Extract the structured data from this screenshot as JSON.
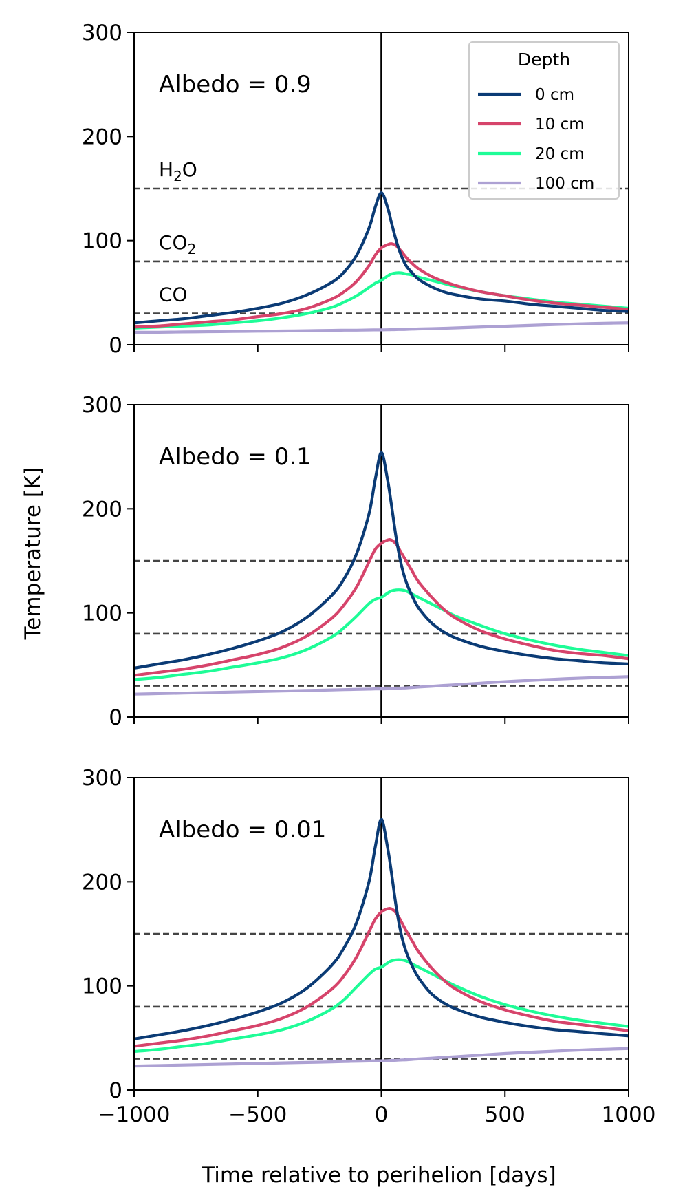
{
  "chart_data": {
    "type": "line",
    "title": "",
    "xlabel": "Time relative to perihelion [days]",
    "ylabel": "Temperature [K]",
    "xlim": [
      -1000,
      1000
    ],
    "ylim": [
      0,
      300
    ],
    "x_ticks": [
      -1000,
      -500,
      0,
      500,
      1000
    ],
    "x_tick_labels": [
      "−1000",
      "−500",
      "0",
      "500",
      "1000"
    ],
    "y_ticks": [
      0,
      100,
      200,
      300
    ],
    "y_tick_labels": [
      "0",
      "100",
      "200",
      "300"
    ],
    "perihelion_line_x": 0,
    "sublimation_lines": [
      {
        "species": "H2O",
        "label_main": "H",
        "label_sub": "2",
        "label_end": "O",
        "temperature": 150
      },
      {
        "species": "CO2",
        "label_main": "CO",
        "label_sub": "2",
        "label_end": "",
        "temperature": 80
      },
      {
        "species": "CO",
        "label_main": "CO",
        "label_sub": "",
        "label_end": "",
        "temperature": 30
      }
    ],
    "legend": {
      "title": "Depth",
      "placement": "top-right",
      "entries": [
        "0 cm",
        "10 cm",
        "20 cm",
        "100 cm"
      ]
    },
    "x": [
      -1000,
      -900,
      -800,
      -700,
      -600,
      -500,
      -400,
      -300,
      -200,
      -150,
      -100,
      -50,
      -25,
      0,
      25,
      40,
      60,
      80,
      100,
      125,
      150,
      200,
      250,
      300,
      400,
      500,
      600,
      700,
      800,
      900,
      1000
    ],
    "panels": [
      {
        "label": "Albedo = 0.9",
        "albedo": 0.9,
        "series": [
          {
            "name": "0 cm",
            "color": "#0b3b75",
            "values": [
              21,
              23,
              25,
              28,
              31,
              35,
              40,
              48,
              60,
              70,
              86,
              112,
              132,
              146,
              132,
              118,
              100,
              86,
              76,
              69,
              63,
              56,
              51,
              48,
              44,
              42,
              39,
              37,
              35,
              33,
              32
            ]
          },
          {
            "name": "10 cm",
            "color": "#d6446b",
            "values": [
              17,
              18,
              20,
              22,
              24,
              27,
              30,
              35,
              44,
              51,
              61,
              76,
              86,
              93,
              96,
              97,
              95,
              90,
              84,
              78,
              73,
              66,
              61,
              57,
              51,
              47,
              43,
              40,
              38,
              36,
              34
            ]
          },
          {
            "name": "20 cm",
            "color": "#1efc97",
            "values": [
              16,
              17,
              18,
              19,
              21,
              23,
              26,
              30,
              36,
              41,
              47,
              55,
              59,
              62,
              66,
              68,
              69,
              69,
              68,
              67,
              65,
              62,
              59,
              56,
              51,
              47,
              44,
              41,
              39,
              37,
              35
            ]
          },
          {
            "name": "100 cm",
            "color": "#ada1d3",
            "values": [
              12,
              12,
              12.3,
              12.5,
              12.8,
              13,
              13.2,
              13.5,
              13.8,
              14,
              14,
              14.2,
              14.3,
              14.3,
              14.4,
              14.5,
              14.6,
              14.7,
              14.8,
              15,
              15.2,
              15.5,
              15.8,
              16.2,
              17,
              17.8,
              18.6,
              19.4,
              20,
              20.6,
              21
            ]
          }
        ]
      },
      {
        "label": "Albedo = 0.1",
        "albedo": 0.1,
        "series": [
          {
            "name": "0 cm",
            "color": "#0b3b75",
            "values": [
              47,
              51,
              55,
              60,
              66,
              73,
              82,
              96,
              117,
              133,
              157,
              195,
              228,
              254,
              228,
              205,
              172,
              147,
              130,
              116,
              105,
              91,
              82,
              76,
              68,
              63,
              59,
              56,
              54,
              52,
              51
            ]
          },
          {
            "name": "10 cm",
            "color": "#d6446b",
            "values": [
              40,
              43,
              46,
              50,
              55,
              60,
              67,
              78,
              95,
              108,
              125,
              149,
              161,
              167,
              170,
              170,
              166,
              158,
              150,
              140,
              130,
              116,
              104,
              95,
              83,
              75,
              69,
              64,
              61,
              59,
              56
            ]
          },
          {
            "name": "20 cm",
            "color": "#1efc97",
            "values": [
              36,
              38,
              41,
              44,
              48,
              52,
              57,
              65,
              77,
              86,
              97,
              109,
              113,
              115,
              119,
              121,
              122,
              122,
              121,
              118,
              115,
              109,
              103,
              97,
              88,
              80,
              74,
              69,
              65,
              62,
              59
            ]
          },
          {
            "name": "100 cm",
            "color": "#ada1d3",
            "values": [
              22,
              22.5,
              23,
              23.5,
              24,
              24.5,
              25,
              25.5,
              26,
              26.3,
              26.6,
              26.8,
              27,
              27,
              27.2,
              27.4,
              27.6,
              27.8,
              28,
              28.4,
              28.8,
              29.5,
              30.3,
              31,
              32.5,
              34,
              35.2,
              36.3,
              37.3,
              38.1,
              38.8
            ]
          }
        ]
      },
      {
        "label": "Albedo = 0.01",
        "albedo": 0.01,
        "series": [
          {
            "name": "0 cm",
            "color": "#0b3b75",
            "values": [
              49,
              53,
              57,
              62,
              68,
              75,
              84,
              98,
              120,
              137,
              161,
              200,
              233,
              260,
              233,
              210,
              176,
              150,
              133,
              119,
              108,
              93,
              84,
              78,
              70,
              65,
              61,
              58,
              56,
              54,
              52
            ]
          },
          {
            "name": "10 cm",
            "color": "#d6446b",
            "values": [
              42,
              45,
              48,
              52,
              57,
              62,
              69,
              80,
              97,
              110,
              128,
              152,
              164,
              171,
              174,
              174,
              170,
              162,
              153,
              143,
              133,
              118,
              106,
              97,
              85,
              77,
              71,
              66,
              63,
              60,
              57
            ]
          },
          {
            "name": "20 cm",
            "color": "#1efc97",
            "values": [
              37,
              39,
              42,
              45,
              49,
              53,
              58,
              66,
              78,
              87,
              99,
              111,
              116,
              118,
              122,
              124,
              125,
              125,
              124,
              121,
              118,
              112,
              106,
              100,
              90,
              82,
              76,
              71,
              67,
              64,
              61
            ]
          },
          {
            "name": "100 cm",
            "color": "#ada1d3",
            "values": [
              23,
              23.5,
              24,
              24.5,
              25,
              25.5,
              26,
              26.5,
              27,
              27.3,
              27.6,
              27.8,
              28,
              28,
              28.2,
              28.4,
              28.6,
              28.8,
              29,
              29.4,
              29.8,
              30.5,
              31.3,
              32,
              33.5,
              35,
              36.2,
              37.3,
              38.3,
              39.1,
              39.8
            ]
          }
        ]
      }
    ]
  }
}
